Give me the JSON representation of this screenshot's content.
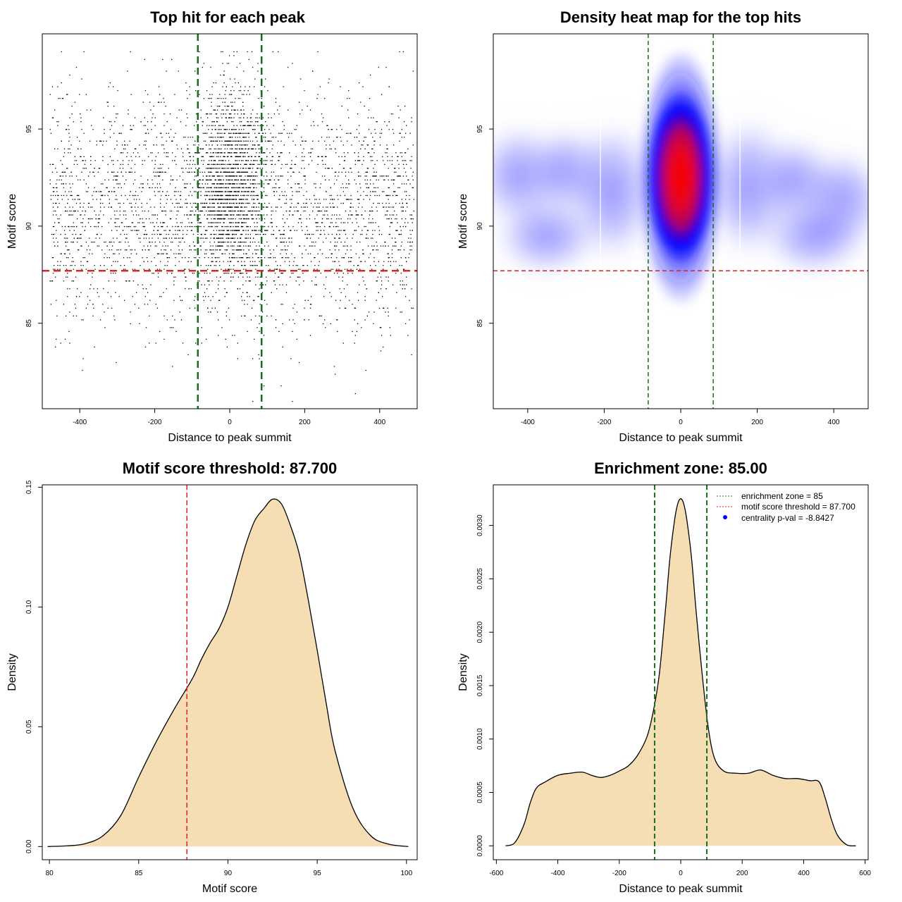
{
  "colors": {
    "threshold_line": "#dd2222",
    "zone_line": "#1a6e1a",
    "density_fill": "#f5deb3",
    "heat_low": "#ffffff",
    "heat_mid": "#0000ff",
    "heat_high": "#ff0000"
  },
  "chart_data": [
    {
      "type": "scatter",
      "title": "Top hit for each peak",
      "xlabel": "Distance to peak summit",
      "ylabel": "Motif score",
      "xlim": [
        -500,
        500
      ],
      "ylim": [
        80.6,
        99.9
      ],
      "xticks": [
        -400,
        -200,
        0,
        200,
        400
      ],
      "yticks": [
        85,
        90,
        95
      ],
      "grid": false,
      "points_description_counts": 5000,
      "vlines": [
        -85,
        85
      ],
      "hline": 87.7
    },
    {
      "type": "heatmap",
      "title": "Density heat map for the top hits",
      "xlabel": "Distance to peak summit",
      "ylabel": "Motif score",
      "xlim": [
        -490,
        490
      ],
      "ylim": [
        80.6,
        99.9
      ],
      "xticks": [
        -400,
        -200,
        0,
        200,
        400
      ],
      "yticks": [
        85,
        90,
        95
      ],
      "vlines": [
        -85,
        85
      ],
      "hline": 87.7,
      "peak": {
        "x": 0,
        "y": 92.5
      }
    },
    {
      "type": "area",
      "title": "Motif score threshold: 87.700",
      "xlabel": "Motif score",
      "ylabel": "Density",
      "xlim": [
        79.6,
        100.6
      ],
      "ylim": [
        -0.0055,
        0.151
      ],
      "xticks": [
        80,
        85,
        90,
        95,
        100
      ],
      "yticks": [
        0.0,
        0.05,
        0.1,
        0.15
      ],
      "ytick_labels": [
        "0.00",
        "0.05",
        "0.10",
        "0.15"
      ],
      "vline": 87.7,
      "x": [
        79.9,
        81.0,
        82.0,
        83.0,
        84.0,
        85.0,
        86.0,
        87.0,
        88.0,
        88.5,
        89.0,
        89.5,
        90.0,
        90.5,
        91.0,
        91.5,
        92.0,
        92.5,
        93.0,
        93.5,
        94.0,
        94.5,
        95.0,
        95.5,
        96.0,
        97.0,
        98.0,
        99.0,
        100.1
      ],
      "y": [
        0.0,
        0.0003,
        0.0012,
        0.0045,
        0.013,
        0.029,
        0.044,
        0.0575,
        0.07,
        0.078,
        0.085,
        0.091,
        0.1,
        0.113,
        0.126,
        0.136,
        0.141,
        0.145,
        0.143,
        0.134,
        0.122,
        0.103,
        0.082,
        0.06,
        0.04,
        0.016,
        0.0045,
        0.001,
        0.0
      ]
    },
    {
      "type": "area",
      "title": "Enrichment zone: 85.00",
      "xlabel": "Distance to peak summit",
      "ylabel": "Density",
      "xlim": [
        -610,
        610
      ],
      "ylim": [
        -0.00013,
        0.00338
      ],
      "xticks": [
        -600,
        -400,
        -200,
        0,
        200,
        400,
        600
      ],
      "yticks": [
        0.0,
        0.0005,
        0.001,
        0.0015,
        0.002,
        0.0025,
        0.003
      ],
      "ytick_labels": [
        "0.0000",
        "0.0005",
        "0.0010",
        "0.0015",
        "0.0020",
        "0.0025",
        "0.0030"
      ],
      "vlines": [
        -85,
        85
      ],
      "x": [
        -570,
        -540,
        -510,
        -490,
        -470,
        -440,
        -400,
        -360,
        -320,
        -290,
        -260,
        -230,
        -200,
        -170,
        -140,
        -110,
        -90,
        -70,
        -50,
        -35,
        -20,
        -10,
        0,
        10,
        20,
        35,
        50,
        70,
        90,
        110,
        140,
        180,
        220,
        260,
        300,
        340,
        380,
        420,
        450,
        470,
        490,
        510,
        540,
        570
      ],
      "y": [
        0.0,
        3e-05,
        0.0002,
        0.0004,
        0.00054,
        0.0006,
        0.00066,
        0.00068,
        0.00069,
        0.00066,
        0.00064,
        0.00066,
        0.0007,
        0.00075,
        0.00085,
        0.00102,
        0.00125,
        0.0016,
        0.0022,
        0.0027,
        0.00305,
        0.0032,
        0.00325,
        0.0032,
        0.00305,
        0.0027,
        0.0022,
        0.0016,
        0.0011,
        0.00082,
        0.0007,
        0.00068,
        0.00068,
        0.00071,
        0.00066,
        0.00063,
        0.00063,
        0.00061,
        0.0006,
        0.00045,
        0.00025,
        0.0001,
        1e-05,
        0.0
      ]
    }
  ],
  "legend": {
    "items": [
      {
        "label": "enrichment zone = 85",
        "kind": "dotted-line",
        "color": "#1a6e1a"
      },
      {
        "label": "motif score threshold = 87.700",
        "kind": "dotted-line",
        "color": "#dd2222"
      },
      {
        "label": "centrality p-val = -8.8427",
        "kind": "point",
        "color": "#0000ff"
      }
    ]
  }
}
